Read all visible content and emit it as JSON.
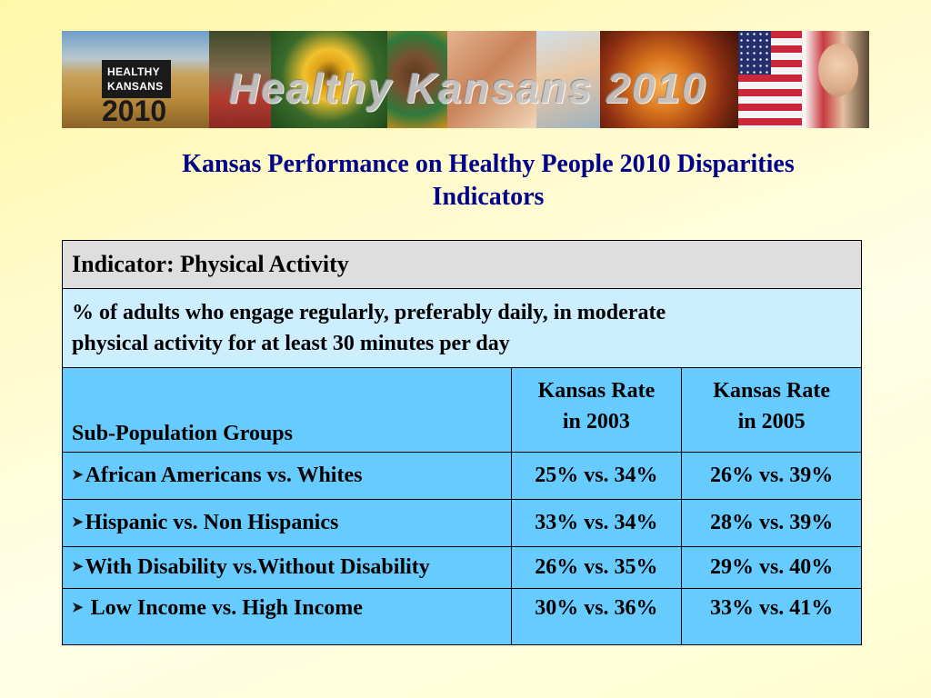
{
  "banner": {
    "logo_line1": "HEALTHY",
    "logo_line2": "KANSANS",
    "logo_year": "2010",
    "title": "Healthy Kansans 2010"
  },
  "slide": {
    "title_line1": "Kansas Performance on Healthy People 2010 Disparities",
    "title_line2": "Indicators"
  },
  "table": {
    "indicator": "Indicator: Physical Activity",
    "description_line1": "% of adults who engage regularly, preferably daily, in moderate",
    "description_line2": "physical activity for at least 30 minutes per day",
    "header": {
      "group": "Sub-Population Groups",
      "rate_2003_line1": "Kansas Rate",
      "rate_2003_line2": "in 2003",
      "rate_2005_line1": "Kansas Rate",
      "rate_2005_line2": "in 2005"
    },
    "rows": [
      {
        "group": "African Americans vs. Whites",
        "rate_2003": "25% vs. 34%",
        "rate_2005": "26% vs. 39%"
      },
      {
        "group": "Hispanic vs. Non Hispanics",
        "rate_2003": "33% vs. 34%",
        "rate_2005": "28% vs. 39%"
      },
      {
        "group": "With Disability vs.Without Disability",
        "rate_2003": "26% vs. 35%",
        "rate_2005": "29% vs. 40%"
      },
      {
        "group": " Low Income vs. High Income",
        "rate_2003": "30% vs. 36%",
        "rate_2005": "33% vs. 41%"
      }
    ],
    "bullet_icon": "arrow-bullet-icon"
  },
  "colors": {
    "title": "#00008b",
    "indicator_bg": "#dedede",
    "description_bg": "#cceeff",
    "table_bg": "#66ccff"
  }
}
